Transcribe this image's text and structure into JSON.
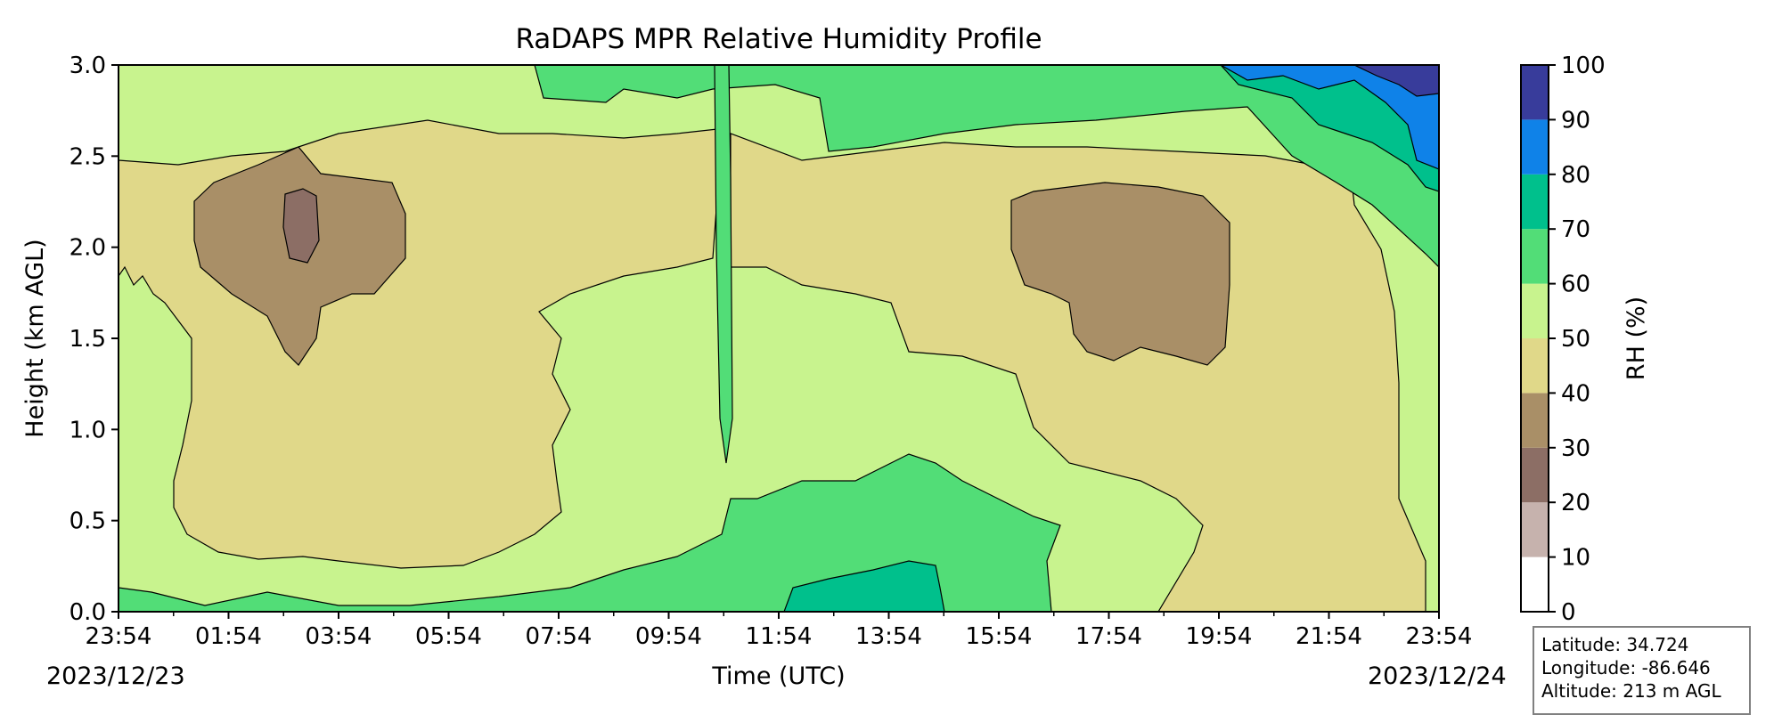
{
  "chart_data": {
    "type": "heatmap",
    "title": "RaDAPS MPR Relative Humidity Profile",
    "xlabel": "Time (UTC)",
    "ylabel": "Height (km AGL)",
    "x_ticks": [
      "23:54",
      "01:54",
      "03:54",
      "05:54",
      "07:54",
      "09:54",
      "11:54",
      "13:54",
      "15:54",
      "17:54",
      "19:54",
      "21:54",
      "23:54"
    ],
    "x_dates": {
      "start": "2023/12/23",
      "end": "2023/12/24"
    },
    "y_ticks": [
      "0.0",
      "0.5",
      "1.0",
      "1.5",
      "2.0",
      "2.5",
      "3.0"
    ],
    "ylim": [
      0,
      3.0
    ],
    "colorbar": {
      "label": "RH (%)",
      "ticks": [
        "0",
        "10",
        "20",
        "30",
        "40",
        "50",
        "60",
        "70",
        "80",
        "90",
        "100"
      ],
      "colors": [
        "#ffffff",
        "#c6b2ad",
        "#8c6e65",
        "#a98f67",
        "#e0d889",
        "#c8f38e",
        "#52dd77",
        "#00c08c",
        "#0f82e8",
        "#383c9b"
      ]
    },
    "z_levels": [
      0,
      10,
      20,
      30,
      40,
      50,
      60,
      70,
      80,
      90,
      100
    ],
    "regions": [
      {
        "class": "40-50",
        "description": "broad layer from ~0.3 to ~2.5 km between 00:00 and 07:30, and from ~0.0 to ~2.4 km between 10:30 and 23:00"
      },
      {
        "class": "30-40",
        "description": "dry pockets near 1.4-2.5 km around 01:00-04:00 and 16:00-20:00"
      },
      {
        "class": "20-30",
        "description": "small pocket near 2.1 km around 02:54"
      },
      {
        "class": "60-70",
        "description": "moist layer near surface 10:00-15:30; near top 09:00-23:54"
      },
      {
        "class": "70-100",
        "description": "upper levels 20:00-23:54 above 2.3 km"
      }
    ]
  },
  "station": {
    "latitude": "Latitude: 34.724",
    "longitude": "Longitude: -86.646",
    "altitude": "Altitude: 213 m AGL"
  }
}
